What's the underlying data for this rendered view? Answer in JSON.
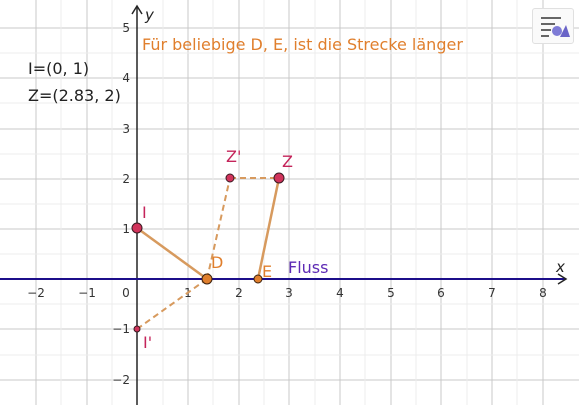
{
  "axes": {
    "x_label": "x",
    "y_label": "y",
    "x_ticks": [
      "−2",
      "−1",
      "0",
      "1",
      "2",
      "3",
      "4",
      "5",
      "6",
      "7",
      "8"
    ],
    "y_ticks": [
      "5",
      "4",
      "3",
      "2",
      "1",
      "−1",
      "−2"
    ]
  },
  "info_text": {
    "point_i": "I=(0, 1)",
    "point_z": "Z=(2.83, 2)"
  },
  "caption": "Für beliebige D, E, ist die Strecke länger",
  "line_label": "Fluss",
  "points": {
    "I": "I",
    "I_prime": "I'",
    "Z": "Z",
    "Z_prime": "Z'",
    "D": "D",
    "E": "E"
  },
  "colors": {
    "axis": "#252525",
    "grid": "#c8c8c8",
    "river": "#1c0e8a",
    "river_label": "#5e2bb5",
    "caption": "#e07f2d",
    "segment": "#d79a5e",
    "point_fill": "#d1335b",
    "point_label": "#c4245a",
    "orange_point": "#e07f2d"
  },
  "icons": {
    "style_bar": "style-bar-icon"
  }
}
